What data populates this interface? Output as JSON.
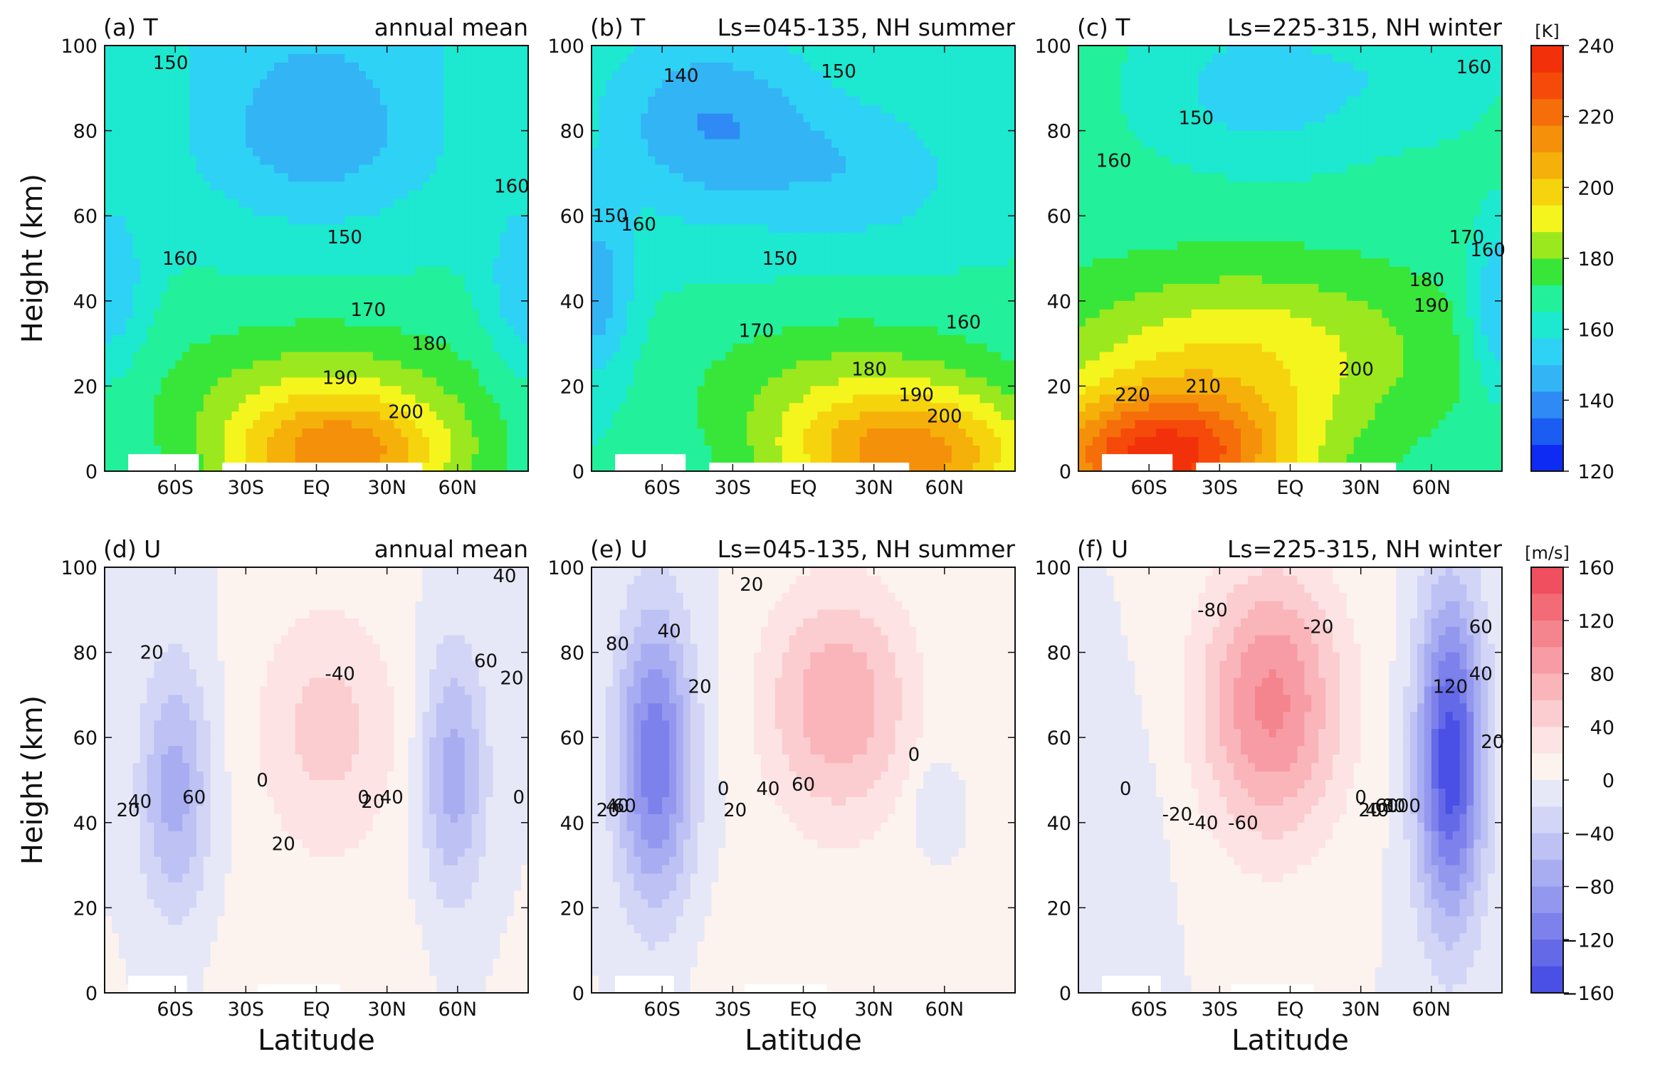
{
  "chart_data": [
    {
      "type": "contour",
      "panel_label": "(a) T",
      "title": "annual mean",
      "ylabel": "Height (km)",
      "xlabel": "",
      "x_ticks": [
        "60S",
        "30S",
        "EQ",
        "30N",
        "60N"
      ],
      "y_ticks": [
        "0",
        "20",
        "40",
        "60",
        "80",
        "100"
      ],
      "xlim": [
        -90,
        90
      ],
      "ylim": [
        0,
        100
      ],
      "contour_labels": [
        {
          "text": "150",
          "lat": -62,
          "z": 96
        },
        {
          "text": "150",
          "lat": 12,
          "z": 55
        },
        {
          "text": "160",
          "lat": -58,
          "z": 50
        },
        {
          "text": "160",
          "lat": 83,
          "z": 67
        },
        {
          "text": "170",
          "lat": 22,
          "z": 38
        },
        {
          "text": "180",
          "lat": 48,
          "z": 30
        },
        {
          "text": "190",
          "lat": 10,
          "z": 22
        },
        {
          "text": "200",
          "lat": 38,
          "z": 14
        }
      ]
    },
    {
      "type": "contour",
      "panel_label": "(b) T",
      "title": "Ls=045-135, NH summer",
      "ylabel": "",
      "xlabel": "",
      "x_ticks": [
        "60S",
        "30S",
        "EQ",
        "30N",
        "60N"
      ],
      "y_ticks": [
        "0",
        "20",
        "40",
        "60",
        "80",
        "100"
      ],
      "xlim": [
        -90,
        90
      ],
      "ylim": [
        0,
        100
      ],
      "contour_labels": [
        {
          "text": "140",
          "lat": -52,
          "z": 93
        },
        {
          "text": "150",
          "lat": 15,
          "z": 94
        },
        {
          "text": "150",
          "lat": -82,
          "z": 60
        },
        {
          "text": "160",
          "lat": -70,
          "z": 58
        },
        {
          "text": "150",
          "lat": -10,
          "z": 50
        },
        {
          "text": "170",
          "lat": -20,
          "z": 33
        },
        {
          "text": "160",
          "lat": 68,
          "z": 35
        },
        {
          "text": "180",
          "lat": 28,
          "z": 24
        },
        {
          "text": "190",
          "lat": 48,
          "z": 18
        },
        {
          "text": "200",
          "lat": 60,
          "z": 13
        }
      ]
    },
    {
      "type": "contour",
      "panel_label": "(c) T",
      "title": "Ls=225-315, NH winter",
      "ylabel": "",
      "xlabel": "",
      "x_ticks": [
        "60S",
        "30S",
        "EQ",
        "30N",
        "60N"
      ],
      "y_ticks": [
        "0",
        "20",
        "40",
        "60",
        "80",
        "100"
      ],
      "xlim": [
        -90,
        90
      ],
      "ylim": [
        0,
        100
      ],
      "contour_labels": [
        {
          "text": "150",
          "lat": -40,
          "z": 83
        },
        {
          "text": "160",
          "lat": -75,
          "z": 73
        },
        {
          "text": "160",
          "lat": 78,
          "z": 95
        },
        {
          "text": "170",
          "lat": 75,
          "z": 55
        },
        {
          "text": "160",
          "lat": 84,
          "z": 52
        },
        {
          "text": "180",
          "lat": 58,
          "z": 45
        },
        {
          "text": "190",
          "lat": 60,
          "z": 39
        },
        {
          "text": "200",
          "lat": 28,
          "z": 24
        },
        {
          "text": "210",
          "lat": -37,
          "z": 20
        },
        {
          "text": "220",
          "lat": -67,
          "z": 18
        }
      ]
    },
    {
      "type": "contour",
      "panel_label": "(d) U",
      "title": "annual mean",
      "ylabel": "Height (km)",
      "xlabel": "Latitude",
      "x_ticks": [
        "60S",
        "30S",
        "EQ",
        "30N",
        "60N"
      ],
      "y_ticks": [
        "0",
        "20",
        "40",
        "60",
        "80",
        "100"
      ],
      "xlim": [
        -90,
        90
      ],
      "ylim": [
        0,
        100
      ],
      "contour_labels": [
        {
          "text": "20",
          "lat": -70,
          "z": 80
        },
        {
          "text": "60",
          "lat": -52,
          "z": 46
        },
        {
          "text": "40",
          "lat": -75,
          "z": 45
        },
        {
          "text": "20",
          "lat": -80,
          "z": 43
        },
        {
          "text": "0",
          "lat": -23,
          "z": 50
        },
        {
          "text": "-40",
          "lat": 10,
          "z": 75
        },
        {
          "text": "20",
          "lat": -14,
          "z": 35
        },
        {
          "text": "0",
          "lat": 20,
          "z": 46
        },
        {
          "text": "20",
          "lat": 24,
          "z": 45
        },
        {
          "text": "40",
          "lat": 32,
          "z": 46
        },
        {
          "text": "60",
          "lat": 72,
          "z": 78
        },
        {
          "text": "20",
          "lat": 83,
          "z": 74
        },
        {
          "text": "40",
          "lat": 80,
          "z": 98
        },
        {
          "text": "0",
          "lat": 86,
          "z": 46
        }
      ]
    },
    {
      "type": "contour",
      "panel_label": "(e) U",
      "title": "Ls=045-135, NH summer",
      "ylabel": "",
      "xlabel": "Latitude",
      "x_ticks": [
        "60S",
        "30S",
        "EQ",
        "30N",
        "60N"
      ],
      "y_ticks": [
        "0",
        "20",
        "40",
        "60",
        "80",
        "100"
      ],
      "xlim": [
        -90,
        90
      ],
      "ylim": [
        0,
        100
      ],
      "contour_labels": [
        {
          "text": "80",
          "lat": -79,
          "z": 82
        },
        {
          "text": "40",
          "lat": -57,
          "z": 85
        },
        {
          "text": "20",
          "lat": -44,
          "z": 72
        },
        {
          "text": "60",
          "lat": -76,
          "z": 44
        },
        {
          "text": "40",
          "lat": -79,
          "z": 44
        },
        {
          "text": "20",
          "lat": -83,
          "z": 43
        },
        {
          "text": "0",
          "lat": -34,
          "z": 48
        },
        {
          "text": "20",
          "lat": -29,
          "z": 43
        },
        {
          "text": "40",
          "lat": -15,
          "z": 48
        },
        {
          "text": "60",
          "lat": 0,
          "z": 49
        },
        {
          "text": "0",
          "lat": 47,
          "z": 56
        },
        {
          "text": "20",
          "lat": -22,
          "z": 96
        }
      ]
    },
    {
      "type": "contour",
      "panel_label": "(f) U",
      "title": "Ls=225-315, NH winter",
      "ylabel": "",
      "xlabel": "Latitude",
      "x_ticks": [
        "60S",
        "30S",
        "EQ",
        "30N",
        "60N"
      ],
      "y_ticks": [
        "0",
        "20",
        "40",
        "60",
        "80",
        "100"
      ],
      "xlim": [
        -90,
        90
      ],
      "ylim": [
        0,
        100
      ],
      "contour_labels": [
        {
          "text": "-80",
          "lat": -33,
          "z": 90
        },
        {
          "text": "-20",
          "lat": 12,
          "z": 86
        },
        {
          "text": "-60",
          "lat": -20,
          "z": 40
        },
        {
          "text": "-40",
          "lat": -37,
          "z": 40
        },
        {
          "text": "-20",
          "lat": -48,
          "z": 42
        },
        {
          "text": "0",
          "lat": -70,
          "z": 48
        },
        {
          "text": "60",
          "lat": 81,
          "z": 86
        },
        {
          "text": "40",
          "lat": 81,
          "z": 75
        },
        {
          "text": "120",
          "lat": 68,
          "z": 72
        },
        {
          "text": "20",
          "lat": 86,
          "z": 59
        },
        {
          "text": "0",
          "lat": 30,
          "z": 46
        },
        {
          "text": "20",
          "lat": 34,
          "z": 43
        },
        {
          "text": "40",
          "lat": 37,
          "z": 43
        },
        {
          "text": "60",
          "lat": 41,
          "z": 44
        },
        {
          "text": "80",
          "lat": 44,
          "z": 44
        },
        {
          "text": "100",
          "lat": 48,
          "z": 44
        }
      ]
    }
  ],
  "colorbars": [
    {
      "unit": "[K]",
      "ticks": [
        "120",
        "140",
        "160",
        "180",
        "200",
        "220",
        "240"
      ],
      "colors": [
        "#0d2bf2",
        "#1b5cf2",
        "#2f8af5",
        "#33b4f5",
        "#2ed2f5",
        "#1de8d0",
        "#22f09a",
        "#38e63a",
        "#9be81e",
        "#f5f51e",
        "#f5d40e",
        "#f5b00a",
        "#f5900a",
        "#f56e0a",
        "#f54a0a",
        "#f2300a"
      ]
    },
    {
      "unit": "[m/s]",
      "ticks": [
        "160",
        "120",
        "80",
        "40",
        "0",
        "−40",
        "−80",
        "−120",
        "−160"
      ],
      "colors": [
        "#ef4f5e",
        "#f26b77",
        "#f4848e",
        "#f79ca4",
        "#f9b5ba",
        "#fbcdd0",
        "#fde3e4",
        "#fdf3ee",
        "#e6e8f7",
        "#d2d5f5",
        "#bdc1f3",
        "#a8acf1",
        "#9397ee",
        "#7d81eb",
        "#6469e8",
        "#4a4fe5"
      ]
    }
  ]
}
